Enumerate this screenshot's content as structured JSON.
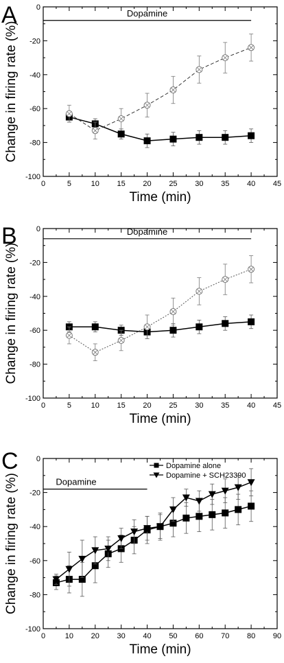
{
  "chart_data": [
    {
      "panel": "A",
      "type": "line",
      "xlabel": "Time (min)",
      "ylabel": "Change in firing rate (%)",
      "xlim": [
        0,
        45
      ],
      "ylim": [
        -100,
        0
      ],
      "xticks": [
        0,
        5,
        10,
        15,
        20,
        25,
        30,
        35,
        40,
        45
      ],
      "yticks": [
        0,
        -20,
        -40,
        -60,
        -80,
        -100
      ],
      "annotation": {
        "text": "Dopamine",
        "x_start": 0,
        "x_end": 40,
        "y": -8
      },
      "series": [
        {
          "style": "solid-square",
          "x": [
            5,
            10,
            15,
            20,
            25,
            30,
            35,
            40
          ],
          "y": [
            -65,
            -69,
            -75,
            -79,
            -78,
            -77,
            -77,
            -76
          ],
          "err": [
            3,
            3,
            3,
            4,
            4,
            4,
            4,
            4
          ]
        },
        {
          "style": "dashed-open-circle",
          "x": [
            5,
            10,
            15,
            20,
            25,
            30,
            35,
            40
          ],
          "y": [
            -63,
            -73,
            -66,
            -58,
            -49,
            -37,
            -30,
            -24
          ],
          "err": [
            5,
            5,
            6,
            7,
            8,
            8,
            9,
            8
          ]
        }
      ]
    },
    {
      "panel": "B",
      "type": "line",
      "xlabel": "Time (min)",
      "ylabel": "Change in firing rate (%)",
      "xlim": [
        0,
        45
      ],
      "ylim": [
        -100,
        0
      ],
      "xticks": [
        0,
        5,
        10,
        15,
        20,
        25,
        30,
        35,
        40,
        45
      ],
      "yticks": [
        0,
        -20,
        -40,
        -60,
        -80,
        -100
      ],
      "annotation": {
        "text": "Dopamine",
        "x_start": 0,
        "x_end": 40,
        "y": -6
      },
      "series": [
        {
          "style": "solid-square",
          "x": [
            5,
            10,
            15,
            20,
            25,
            30,
            35,
            40
          ],
          "y": [
            -58,
            -58,
            -60,
            -61,
            -60,
            -58,
            -56,
            -55
          ],
          "err": [
            3,
            3,
            3,
            4,
            4,
            4,
            4,
            4
          ]
        },
        {
          "style": "dotted-open-circle",
          "x": [
            5,
            10,
            15,
            20,
            25,
            30,
            35,
            40
          ],
          "y": [
            -63,
            -73,
            -66,
            -58,
            -49,
            -37,
            -30,
            -24
          ],
          "err": [
            5,
            5,
            6,
            7,
            8,
            8,
            9,
            8
          ]
        }
      ]
    },
    {
      "panel": "C",
      "type": "line",
      "xlabel": "Time (min)",
      "ylabel": "Change in firing rate (%)",
      "xlim": [
        0,
        90
      ],
      "ylim": [
        -100,
        0
      ],
      "xticks": [
        0,
        10,
        20,
        30,
        40,
        50,
        60,
        70,
        80,
        90
      ],
      "yticks": [
        0,
        -20,
        -40,
        -60,
        -80,
        -100
      ],
      "annotation": {
        "text": "Dopamine",
        "x_start": 0,
        "x_end": 40,
        "y": -18
      },
      "legend_position": "top-right",
      "series": [
        {
          "name": "Dopamine alone",
          "style": "solid-square",
          "x": [
            5,
            10,
            15,
            20,
            25,
            30,
            35,
            40,
            45,
            50,
            55,
            60,
            65,
            70,
            75,
            80
          ],
          "y": [
            -73,
            -71,
            -71,
            -63,
            -56,
            -53,
            -48,
            -42,
            -40,
            -38,
            -35,
            -34,
            -33,
            -32,
            -30,
            -28
          ],
          "err": [
            4,
            8,
            10,
            10,
            8,
            8,
            8,
            8,
            8,
            8,
            9,
            9,
            9,
            9,
            9,
            9
          ]
        },
        {
          "name": "Dopamine + SCH23390",
          "style": "solid-triangle-down",
          "x": [
            5,
            10,
            15,
            20,
            25,
            30,
            35,
            40,
            45,
            50,
            55,
            60,
            65,
            70,
            75,
            80
          ],
          "y": [
            -71,
            -65,
            -59,
            -54,
            -53,
            -47,
            -43,
            -41,
            -40,
            -30,
            -23,
            -25,
            -21,
            -19,
            -17,
            -14
          ],
          "err": [
            3,
            10,
            11,
            8,
            7,
            6,
            7,
            7,
            7,
            7,
            5,
            6,
            6,
            7,
            7,
            8
          ]
        }
      ]
    }
  ]
}
